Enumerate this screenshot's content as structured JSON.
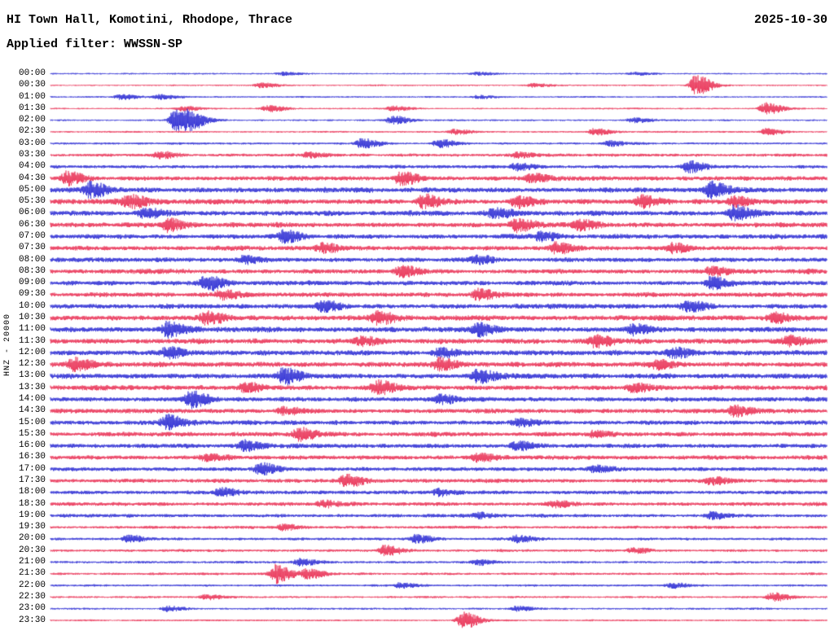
{
  "header": {
    "title": "HI Town Hall, Komotini, Rhodope, Thrace",
    "date": "2025-10-30",
    "filter_line": "Applied filter: WWSSN-SP"
  },
  "chart_data": {
    "type": "line",
    "subtype": "seismogram-helicorder",
    "title": "HI Town Hall, Komotini, Rhodope, Thrace",
    "date": "2025-10-30",
    "filter": "WWSSN-SP",
    "axis_label": "HNZ - 20000",
    "channel": "HNZ",
    "gain": "20000",
    "minutes_per_row": 30,
    "row_start": "00:00",
    "row_end": "23:30",
    "legend": "none",
    "grid": false,
    "trace_colors": {
      "blue": "#1f1fd1",
      "red": "#e8234a"
    },
    "rows": [
      {
        "time": "00:00",
        "color": "blue",
        "amp": 1.1,
        "bursts": [
          [
            0.3,
            2
          ],
          [
            0.55,
            2
          ],
          [
            0.75,
            2
          ]
        ]
      },
      {
        "time": "00:30",
        "color": "red",
        "amp": 1.1,
        "bursts": [
          [
            0.27,
            3
          ],
          [
            0.62,
            2
          ],
          [
            0.83,
            12
          ]
        ]
      },
      {
        "time": "01:00",
        "color": "blue",
        "amp": 1.2,
        "bursts": [
          [
            0.09,
            3
          ],
          [
            0.14,
            3
          ],
          [
            0.55,
            2
          ]
        ]
      },
      {
        "time": "01:30",
        "color": "red",
        "amp": 1.2,
        "bursts": [
          [
            0.17,
            3
          ],
          [
            0.28,
            4
          ],
          [
            0.44,
            3
          ],
          [
            0.92,
            7
          ]
        ]
      },
      {
        "time": "02:00",
        "color": "blue",
        "amp": 1.3,
        "bursts": [
          [
            0.16,
            13
          ],
          [
            0.18,
            8
          ],
          [
            0.44,
            5
          ],
          [
            0.75,
            3
          ]
        ]
      },
      {
        "time": "02:30",
        "color": "red",
        "amp": 1.3,
        "bursts": [
          [
            0.52,
            3
          ],
          [
            0.7,
            4
          ],
          [
            0.92,
            4
          ]
        ]
      },
      {
        "time": "03:00",
        "color": "blue",
        "amp": 1.6,
        "bursts": [
          [
            0.4,
            6
          ],
          [
            0.5,
            5
          ],
          [
            0.72,
            3
          ]
        ]
      },
      {
        "time": "03:30",
        "color": "red",
        "amp": 2.2,
        "bursts": [
          [
            0.14,
            4
          ],
          [
            0.33,
            3
          ],
          [
            0.6,
            3
          ]
        ]
      },
      {
        "time": "04:00",
        "color": "blue",
        "amp": 2.6,
        "bursts": [
          [
            0.6,
            4
          ],
          [
            0.82,
            7
          ]
        ]
      },
      {
        "time": "04:30",
        "color": "red",
        "amp": 3.4,
        "bursts": [
          [
            0.02,
            8
          ],
          [
            0.45,
            8
          ],
          [
            0.62,
            5
          ]
        ]
      },
      {
        "time": "05:00",
        "color": "blue",
        "amp": 3.8,
        "bursts": [
          [
            0.05,
            9
          ],
          [
            0.85,
            9
          ]
        ]
      },
      {
        "time": "05:30",
        "color": "red",
        "amp": 3.8,
        "bursts": [
          [
            0.1,
            8
          ],
          [
            0.48,
            8
          ],
          [
            0.6,
            7
          ],
          [
            0.76,
            7
          ],
          [
            0.88,
            6
          ]
        ]
      },
      {
        "time": "06:00",
        "color": "blue",
        "amp": 3.8,
        "bursts": [
          [
            0.12,
            5
          ],
          [
            0.57,
            5
          ],
          [
            0.88,
            8
          ]
        ]
      },
      {
        "time": "06:30",
        "color": "red",
        "amp": 3.6,
        "bursts": [
          [
            0.15,
            7
          ],
          [
            0.6,
            7
          ],
          [
            0.68,
            5
          ]
        ]
      },
      {
        "time": "07:00",
        "color": "blue",
        "amp": 3.5,
        "bursts": [
          [
            0.3,
            7
          ],
          [
            0.63,
            5
          ]
        ]
      },
      {
        "time": "07:30",
        "color": "red",
        "amp": 3.5,
        "bursts": [
          [
            0.35,
            5
          ],
          [
            0.65,
            6
          ],
          [
            0.8,
            5
          ]
        ]
      },
      {
        "time": "08:00",
        "color": "blue",
        "amp": 3.4,
        "bursts": [
          [
            0.25,
            4
          ],
          [
            0.55,
            4
          ]
        ]
      },
      {
        "time": "08:30",
        "color": "red",
        "amp": 3.4,
        "bursts": [
          [
            0.45,
            6
          ],
          [
            0.85,
            5
          ]
        ]
      },
      {
        "time": "09:00",
        "color": "blue",
        "amp": 3.4,
        "bursts": [
          [
            0.2,
            8
          ],
          [
            0.85,
            7
          ]
        ]
      },
      {
        "time": "09:30",
        "color": "red",
        "amp": 3.4,
        "bursts": [
          [
            0.22,
            5
          ],
          [
            0.55,
            6
          ]
        ]
      },
      {
        "time": "10:00",
        "color": "blue",
        "amp": 3.5,
        "bursts": [
          [
            0.35,
            6
          ],
          [
            0.82,
            6
          ]
        ]
      },
      {
        "time": "10:30",
        "color": "red",
        "amp": 3.8,
        "bursts": [
          [
            0.2,
            7
          ],
          [
            0.42,
            7
          ],
          [
            0.93,
            6
          ]
        ]
      },
      {
        "time": "11:00",
        "color": "blue",
        "amp": 3.8,
        "bursts": [
          [
            0.15,
            9
          ],
          [
            0.55,
            8
          ],
          [
            0.75,
            6
          ]
        ]
      },
      {
        "time": "11:30",
        "color": "red",
        "amp": 3.8,
        "bursts": [
          [
            0.4,
            5
          ],
          [
            0.7,
            7
          ],
          [
            0.95,
            6
          ]
        ]
      },
      {
        "time": "12:00",
        "color": "blue",
        "amp": 3.8,
        "bursts": [
          [
            0.15,
            6
          ],
          [
            0.5,
            5
          ],
          [
            0.8,
            6
          ]
        ]
      },
      {
        "time": "12:30",
        "color": "red",
        "amp": 3.8,
        "bursts": [
          [
            0.03,
            7
          ],
          [
            0.5,
            7
          ],
          [
            0.78,
            5
          ]
        ]
      },
      {
        "time": "13:00",
        "color": "blue",
        "amp": 3.8,
        "bursts": [
          [
            0.3,
            9
          ],
          [
            0.55,
            7
          ]
        ]
      },
      {
        "time": "13:30",
        "color": "red",
        "amp": 3.8,
        "bursts": [
          [
            0.25,
            5
          ],
          [
            0.42,
            8
          ],
          [
            0.75,
            5
          ]
        ]
      },
      {
        "time": "14:00",
        "color": "blue",
        "amp": 3.5,
        "bursts": [
          [
            0.18,
            9
          ],
          [
            0.5,
            5
          ]
        ]
      },
      {
        "time": "14:30",
        "color": "red",
        "amp": 3.5,
        "bursts": [
          [
            0.3,
            4
          ],
          [
            0.88,
            6
          ]
        ]
      },
      {
        "time": "15:00",
        "color": "blue",
        "amp": 3.4,
        "bursts": [
          [
            0.15,
            8
          ],
          [
            0.6,
            4
          ]
        ]
      },
      {
        "time": "15:30",
        "color": "red",
        "amp": 3.4,
        "bursts": [
          [
            0.32,
            7
          ],
          [
            0.7,
            4
          ]
        ]
      },
      {
        "time": "16:00",
        "color": "blue",
        "amp": 3.2,
        "bursts": [
          [
            0.25,
            6
          ],
          [
            0.6,
            5
          ]
        ]
      },
      {
        "time": "16:30",
        "color": "red",
        "amp": 3.2,
        "bursts": [
          [
            0.2,
            4
          ],
          [
            0.55,
            6
          ]
        ]
      },
      {
        "time": "17:00",
        "color": "blue",
        "amp": 3.0,
        "bursts": [
          [
            0.27,
            7
          ],
          [
            0.7,
            4
          ]
        ]
      },
      {
        "time": "17:30",
        "color": "red",
        "amp": 3.0,
        "bursts": [
          [
            0.38,
            7
          ],
          [
            0.85,
            4
          ]
        ]
      },
      {
        "time": "18:00",
        "color": "blue",
        "amp": 2.9,
        "bursts": [
          [
            0.22,
            5
          ],
          [
            0.5,
            4
          ]
        ]
      },
      {
        "time": "18:30",
        "color": "red",
        "amp": 2.8,
        "bursts": [
          [
            0.35,
            4
          ],
          [
            0.65,
            4
          ]
        ]
      },
      {
        "time": "19:00",
        "color": "blue",
        "amp": 2.5,
        "bursts": [
          [
            0.55,
            3
          ],
          [
            0.85,
            4
          ]
        ]
      },
      {
        "time": "19:30",
        "color": "red",
        "amp": 2.1,
        "bursts": [
          [
            0.3,
            3
          ]
        ]
      },
      {
        "time": "20:00",
        "color": "blue",
        "amp": 2.0,
        "bursts": [
          [
            0.1,
            4
          ],
          [
            0.47,
            5
          ],
          [
            0.6,
            4
          ]
        ]
      },
      {
        "time": "20:30",
        "color": "red",
        "amp": 1.9,
        "bursts": [
          [
            0.43,
            6
          ],
          [
            0.75,
            3
          ]
        ]
      },
      {
        "time": "21:00",
        "color": "blue",
        "amp": 1.8,
        "bursts": [
          [
            0.32,
            4
          ],
          [
            0.55,
            3
          ]
        ]
      },
      {
        "time": "21:30",
        "color": "red",
        "amp": 1.8,
        "bursts": [
          [
            0.29,
            11
          ],
          [
            0.33,
            6
          ]
        ]
      },
      {
        "time": "22:00",
        "color": "blue",
        "amp": 1.6,
        "bursts": [
          [
            0.45,
            3
          ],
          [
            0.8,
            3
          ]
        ]
      },
      {
        "time": "22:30",
        "color": "red",
        "amp": 1.5,
        "bursts": [
          [
            0.2,
            3
          ],
          [
            0.93,
            5
          ]
        ]
      },
      {
        "time": "23:00",
        "color": "blue",
        "amp": 1.4,
        "bursts": [
          [
            0.15,
            3
          ],
          [
            0.6,
            3
          ]
        ]
      },
      {
        "time": "23:30",
        "color": "red",
        "amp": 1.3,
        "bursts": [
          [
            0.53,
            10
          ]
        ]
      }
    ]
  }
}
